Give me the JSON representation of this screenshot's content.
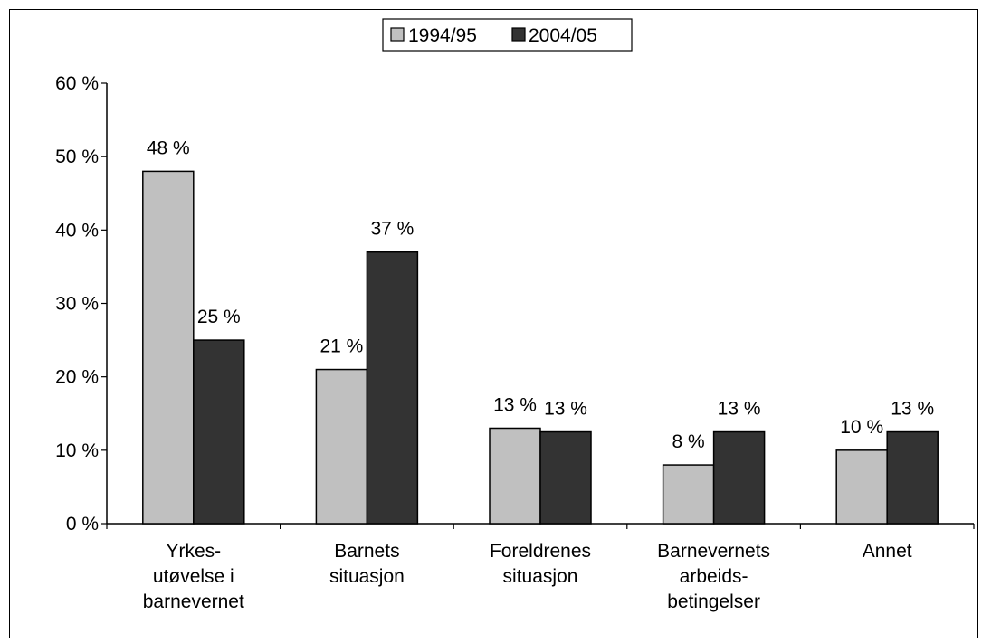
{
  "chart_data": {
    "type": "bar",
    "categories": [
      [
        "Yrkes-",
        "utøvelse i",
        "barnevernet"
      ],
      [
        "Barnets",
        "situasjon"
      ],
      [
        "Foreldrenes",
        "situasjon"
      ],
      [
        "Barnevernets",
        "arbeids-",
        "betingelser"
      ],
      [
        "Annet"
      ]
    ],
    "series": [
      {
        "name": "1994/95",
        "values": [
          48,
          21,
          13,
          8,
          10
        ],
        "labels": [
          "48 %",
          "21 %",
          "13 %",
          "8 %",
          "10 %"
        ],
        "color": "#c0c0c0"
      },
      {
        "name": "2004/05",
        "values": [
          25,
          37,
          12.5,
          12.5,
          12.5
        ],
        "labels": [
          "25 %",
          "37 %",
          "13 %",
          "13 %",
          "13 %"
        ],
        "color": "#333333"
      }
    ],
    "ylim": [
      0,
      60
    ],
    "yticks": [
      0,
      10,
      20,
      30,
      40,
      50,
      60
    ],
    "ytick_labels": [
      "0 %",
      "10 %",
      "20 %",
      "30 %",
      "40 %",
      "50 %",
      "60 %"
    ],
    "legend_position": "top-center",
    "grid": false
  }
}
